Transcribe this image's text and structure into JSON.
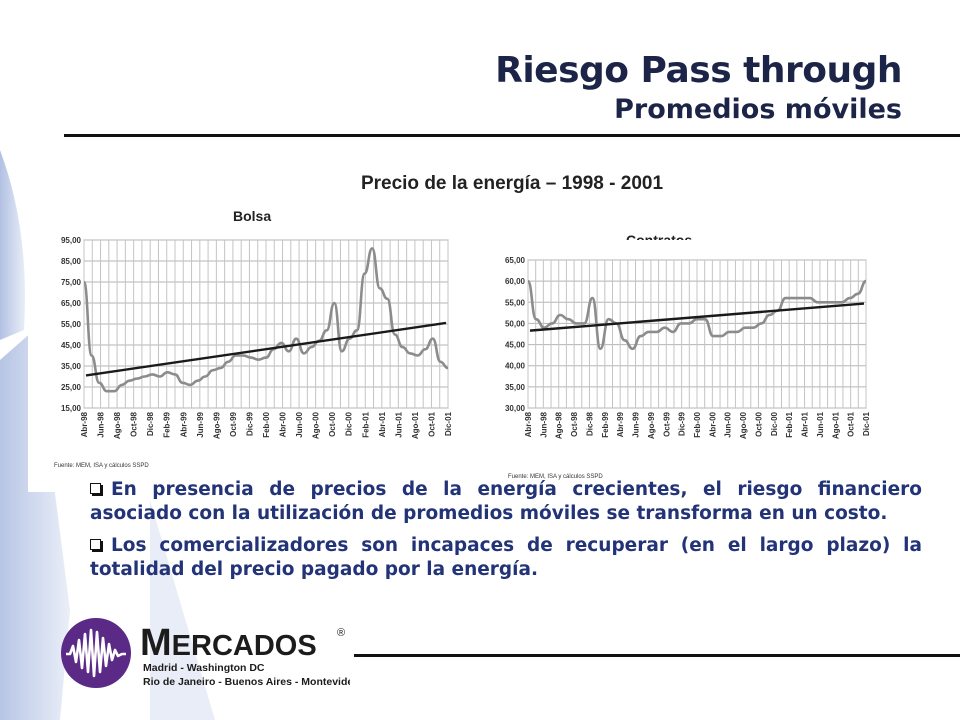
{
  "slide": {
    "title": "Riesgo Pass through",
    "subtitle": "Promedios móviles",
    "chart_heading": "Precio de la energía – 1998 - 2001"
  },
  "chart_data": [
    {
      "type": "line",
      "title": "Bolsa",
      "source": "Fuente: MEM, ISA y cálculos SSPD",
      "ylim": [
        15,
        95
      ],
      "yticks": [
        "95,00",
        "85,00",
        "75,00",
        "65,00",
        "55,00",
        "45,00",
        "35,00",
        "25,00",
        "15,00"
      ],
      "ytick_values": [
        95,
        85,
        75,
        65,
        55,
        45,
        35,
        25,
        15
      ],
      "xtick_labels": [
        "Abr-98",
        "Jun-98",
        "Ago-98",
        "Oct-98",
        "Dic-98",
        "Feb-99",
        "Abr-99",
        "Jun-99",
        "Ago-99",
        "Oct-99",
        "Dic-99",
        "Feb-00",
        "Abr-00",
        "Jun-00",
        "Ago-00",
        "Oct-00",
        "Dic-00",
        "Feb-01",
        "Abr-01",
        "Jun-01",
        "Ago-01",
        "Oct-01",
        "Dic-01"
      ],
      "grid": true,
      "series": [
        {
          "style": "price",
          "color": "#8c8c8c",
          "values": [
            75,
            40,
            27,
            23,
            23,
            26,
            28,
            29,
            30,
            31,
            30,
            32,
            31,
            27,
            26,
            28,
            30,
            33,
            34,
            37,
            40,
            40,
            39,
            38,
            39,
            43,
            46,
            42,
            48,
            41,
            44,
            47,
            52,
            65,
            42,
            48,
            52,
            79,
            91,
            72,
            67,
            50,
            44,
            41,
            40,
            43,
            48,
            37,
            34
          ]
        },
        {
          "style": "trend",
          "color": "#1a1a1a",
          "values_start_end": [
            30.5,
            55.5
          ]
        }
      ]
    },
    {
      "type": "line",
      "title": "Contratos",
      "source": "Fuente: MEM, ISA y cálculos SSPD",
      "ylim": [
        30,
        65
      ],
      "yticks": [
        "65,00",
        "60,00",
        "55,00",
        "50,00",
        "45,00",
        "40,00",
        "35,00",
        "30,00"
      ],
      "ytick_values": [
        65,
        60,
        55,
        50,
        45,
        40,
        35,
        30
      ],
      "xtick_labels": [
        "Abr-98",
        "Jun-98",
        "Ago-98",
        "Oct-98",
        "Dic-98",
        "Feb-99",
        "Abr-99",
        "Jun-99",
        "Ago-99",
        "Oct-99",
        "Dic-99",
        "Feb-00",
        "Abr-00",
        "Jun-00",
        "Ago-00",
        "Oct-00",
        "Dic-00",
        "Feb-01",
        "Abr-01",
        "Jun-01",
        "Ago-01",
        "Oct-01",
        "Dic-01"
      ],
      "grid": true,
      "series": [
        {
          "style": "price",
          "color": "#8c8c8c",
          "values": [
            60,
            51,
            49,
            50,
            52,
            51,
            50,
            50,
            56,
            44,
            51,
            50,
            46,
            44,
            47,
            48,
            48,
            49,
            48,
            50,
            50,
            51,
            51,
            47,
            47,
            48,
            48,
            49,
            49,
            50,
            52,
            53,
            56,
            56,
            56,
            56,
            55,
            55,
            55,
            55,
            56,
            57,
            60
          ]
        },
        {
          "style": "trend",
          "color": "#1a1a1a",
          "values_start_end": [
            48.3,
            54.7
          ]
        }
      ]
    }
  ],
  "bullets": [
    "En presencia de precios de la energía crecientes, el riesgo financiero asociado con la utilización de promedios móviles se transforma en un costo.",
    "Los comercializadores son incapaces de recuperar (en el largo plazo) la totalidad del precio pagado por la energía."
  ],
  "logo": {
    "name": "MERCADOS",
    "registered": "®",
    "line1": "Madrid - Washington DC",
    "line2": "Rio de Janeiro - Buenos Aires - Montevideo",
    "wave_color": "#5b2a86"
  }
}
